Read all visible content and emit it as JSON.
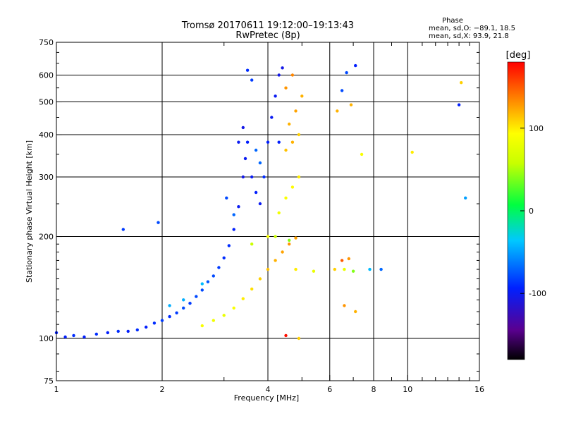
{
  "chart_data": {
    "type": "scatter",
    "title": "Tromsø 20170611 19:12:00–19:13:43",
    "subtitle": "RwPretec (8p)",
    "xlabel": "Frequency [MHz]",
    "ylabel": "Stationary phase Virtual Height [km]",
    "x_scale": "log",
    "y_scale": "log",
    "xlim": [
      1,
      16
    ],
    "ylim": [
      75,
      750
    ],
    "x_ticks": [
      1,
      2,
      4,
      6,
      8,
      10,
      16
    ],
    "x_minor_ticks": [
      3,
      5,
      7,
      9,
      11,
      12,
      13,
      14,
      15
    ],
    "y_ticks": [
      75,
      100,
      200,
      300,
      400,
      500,
      600,
      750
    ],
    "grid": true,
    "phase_stats": {
      "title": "Phase",
      "line_o": "mean, sd,O: −89.1, 18.5",
      "line_x": "mean, sd,X:  93.9, 21.8"
    },
    "colorbar": {
      "label": "[deg]",
      "range": [
        -180,
        180
      ],
      "ticks": [
        100,
        0,
        -100
      ]
    },
    "series": [
      {
        "points": [
          [
            1.0,
            104,
            -95
          ],
          [
            1.06,
            101,
            -95
          ],
          [
            1.12,
            102,
            -90
          ],
          [
            1.2,
            101,
            -95
          ],
          [
            1.3,
            103,
            -90
          ],
          [
            1.4,
            104,
            -95
          ],
          [
            1.5,
            105,
            -90
          ],
          [
            1.6,
            105,
            -95
          ],
          [
            1.7,
            106,
            -90
          ],
          [
            1.8,
            108,
            -95
          ],
          [
            1.9,
            111,
            -90
          ],
          [
            2.0,
            113,
            -85
          ],
          [
            2.1,
            116,
            -90
          ],
          [
            2.2,
            119,
            -85
          ],
          [
            2.3,
            123,
            -80
          ],
          [
            2.4,
            127,
            -85
          ],
          [
            2.5,
            133,
            -80
          ],
          [
            2.6,
            139,
            -80
          ],
          [
            2.7,
            147,
            -75
          ],
          [
            2.8,
            153,
            -80
          ],
          [
            2.9,
            162,
            -85
          ],
          [
            3.0,
            173,
            -90
          ],
          [
            3.1,
            188,
            -90
          ],
          [
            3.2,
            210,
            -95
          ],
          [
            3.3,
            245,
            -100
          ],
          [
            3.4,
            300,
            -105
          ],
          [
            3.45,
            340,
            -100
          ],
          [
            3.5,
            380,
            -95
          ],
          [
            3.3,
            380,
            -100
          ],
          [
            3.4,
            420,
            -105
          ],
          [
            3.6,
            300,
            -100
          ],
          [
            3.7,
            270,
            -95
          ],
          [
            3.8,
            250,
            -100
          ],
          [
            3.9,
            300,
            -90
          ],
          [
            4.0,
            380,
            -95
          ],
          [
            4.1,
            450,
            -100
          ],
          [
            4.2,
            520,
            -100
          ],
          [
            4.3,
            600,
            -105
          ],
          [
            3.8,
            330,
            -70
          ],
          [
            3.7,
            360,
            -70
          ],
          [
            4.3,
            380,
            -95
          ],
          [
            4.4,
            630,
            -105
          ],
          [
            3.5,
            620,
            -90
          ],
          [
            3.6,
            580,
            -85
          ],
          [
            1.55,
            210,
            -85
          ],
          [
            1.95,
            220,
            -80
          ],
          [
            3.05,
            260,
            -80
          ],
          [
            3.2,
            232,
            -70
          ],
          [
            2.1,
            125,
            -45
          ],
          [
            2.3,
            130,
            -45
          ],
          [
            2.6,
            145,
            -40
          ]
        ]
      },
      {
        "points": [
          [
            2.6,
            109,
            90
          ],
          [
            2.8,
            113,
            85
          ],
          [
            3.0,
            117,
            80
          ],
          [
            3.2,
            123,
            90
          ],
          [
            3.4,
            131,
            100
          ],
          [
            3.6,
            140,
            105
          ],
          [
            3.8,
            150,
            110
          ],
          [
            4.0,
            160,
            115
          ],
          [
            4.2,
            170,
            120
          ],
          [
            4.4,
            180,
            125
          ],
          [
            4.6,
            190,
            130
          ],
          [
            4.8,
            198,
            125
          ],
          [
            4.0,
            200,
            90
          ],
          [
            4.3,
            235,
            85
          ],
          [
            4.5,
            260,
            90
          ],
          [
            4.7,
            280,
            95
          ],
          [
            4.9,
            300,
            100
          ],
          [
            4.5,
            360,
            115
          ],
          [
            4.7,
            380,
            120
          ],
          [
            4.9,
            400,
            110
          ],
          [
            4.6,
            430,
            120
          ],
          [
            4.8,
            470,
            125
          ],
          [
            5.0,
            520,
            120
          ],
          [
            4.5,
            550,
            130
          ],
          [
            4.7,
            600,
            135
          ],
          [
            4.2,
            200,
            60
          ],
          [
            4.6,
            195,
            40
          ],
          [
            3.6,
            190,
            60
          ],
          [
            4.8,
            160,
            100
          ],
          [
            5.4,
            158,
            80
          ],
          [
            6.2,
            160,
            110
          ],
          [
            6.6,
            160,
            80
          ],
          [
            7.0,
            158,
            40
          ],
          [
            7.8,
            160,
            -40
          ],
          [
            8.4,
            160,
            -70
          ],
          [
            6.5,
            170,
            150
          ],
          [
            6.8,
            172,
            130
          ],
          [
            6.6,
            125,
            130
          ],
          [
            7.1,
            120,
            120
          ],
          [
            4.5,
            102,
            175
          ],
          [
            4.9,
            100,
            110
          ],
          [
            6.5,
            540,
            -80
          ],
          [
            6.7,
            610,
            -80
          ],
          [
            7.1,
            640,
            -95
          ],
          [
            6.3,
            470,
            120
          ],
          [
            6.9,
            490,
            120
          ],
          [
            7.4,
            350,
            90
          ],
          [
            10.3,
            355,
            100
          ],
          [
            14.2,
            570,
            110
          ],
          [
            14.0,
            490,
            -95
          ],
          [
            14.6,
            260,
            -50
          ]
        ]
      }
    ]
  }
}
